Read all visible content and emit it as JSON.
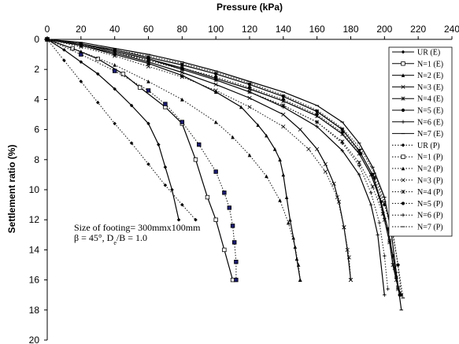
{
  "chart_data": {
    "type": "line",
    "title": "",
    "xlabel": "Pressure (kPa)",
    "ylabel": "Settlement ratio (%)",
    "xlim": [
      0,
      240
    ],
    "ylim": [
      0,
      20
    ],
    "x_axis_position": "top",
    "y_inverted": true,
    "x_ticks": [
      "0",
      "20",
      "40",
      "60",
      "80",
      "100",
      "120",
      "140",
      "160",
      "180",
      "200",
      "220",
      "240"
    ],
    "y_ticks": [
      "0",
      "2",
      "4",
      "6",
      "8",
      "10",
      "12",
      "14",
      "16",
      "18",
      "20"
    ],
    "grid": false,
    "legend_position": "right",
    "annotation": {
      "line1": "Size of footing= 300mmx100mm",
      "line2_beta": "β = 45°, D",
      "line2_sub": "e",
      "line2_rest": "/B = 1.0"
    },
    "series": [
      {
        "name": "UR (E)",
        "style": "solid",
        "marker": "diamond",
        "x": [
          0,
          10,
          20,
          30,
          40,
          50,
          60,
          66,
          70,
          74,
          78
        ],
        "y": [
          0,
          0.7,
          1.5,
          2.3,
          3.3,
          4.4,
          5.6,
          7.0,
          8.5,
          10.0,
          12.0
        ]
      },
      {
        "name": "N=1 (E)",
        "style": "solid",
        "marker": "square",
        "x": [
          0,
          15,
          30,
          45,
          55,
          70,
          80,
          88,
          95,
          100,
          105,
          110
        ],
        "y": [
          0,
          0.6,
          1.3,
          2.3,
          3.2,
          4.5,
          5.6,
          8.0,
          10.5,
          12.0,
          14.0,
          16.0
        ]
      },
      {
        "name": "N=2 (E)",
        "style": "solid",
        "marker": "triangle",
        "x": [
          0,
          20,
          40,
          60,
          80,
          100,
          115,
          125,
          130,
          135,
          138,
          140,
          142,
          144,
          146,
          148,
          150
        ],
        "y": [
          0,
          0.4,
          1.0,
          1.6,
          2.4,
          3.5,
          4.5,
          5.7,
          6.4,
          7.3,
          8.0,
          9.0,
          10.5,
          12.0,
          13.2,
          14.6,
          16.0
        ]
      },
      {
        "name": "N=3 (E)",
        "style": "solid",
        "marker": "x",
        "x": [
          0,
          20,
          40,
          60,
          80,
          100,
          120,
          140,
          150,
          160,
          165,
          170,
          173,
          176,
          178,
          180
        ],
        "y": [
          0,
          0.4,
          0.9,
          1.5,
          2.2,
          3.0,
          3.9,
          5.0,
          6.0,
          7.3,
          8.3,
          9.6,
          10.8,
          12.5,
          14.0,
          16.0
        ]
      },
      {
        "name": "N=4 (E)",
        "style": "solid",
        "marker": "asterisk",
        "x": [
          0,
          20,
          40,
          60,
          80,
          100,
          120,
          140,
          160,
          175,
          185,
          192,
          197,
          200,
          203,
          205,
          207,
          208,
          210
        ],
        "y": [
          0,
          0.3,
          0.8,
          1.3,
          1.9,
          2.6,
          3.3,
          4.1,
          5.1,
          6.3,
          7.6,
          9.0,
          10.5,
          12.0,
          13.5,
          15.0,
          16.0,
          16.5,
          17.0
        ]
      },
      {
        "name": "N=5 (E)",
        "style": "solid",
        "marker": "circle",
        "x": [
          0,
          20,
          40,
          60,
          80,
          100,
          120,
          140,
          160,
          175,
          185,
          193,
          198,
          202,
          205,
          207,
          209
        ],
        "y": [
          0,
          0.3,
          0.7,
          1.2,
          1.7,
          2.3,
          3.0,
          3.8,
          4.8,
          6.0,
          7.4,
          9.0,
          10.8,
          12.6,
          14.4,
          15.8,
          17.0
        ]
      },
      {
        "name": "N=6 (E)",
        "style": "solid",
        "marker": "plus",
        "x": [
          0,
          20,
          40,
          60,
          80,
          100,
          120,
          140,
          160,
          175,
          185,
          192,
          196,
          200
        ],
        "y": [
          0,
          0.3,
          0.8,
          1.3,
          2.0,
          2.7,
          3.5,
          4.5,
          5.8,
          7.4,
          9.0,
          11.0,
          13.0,
          17.0
        ]
      },
      {
        "name": "N=7 (E)",
        "style": "solid",
        "marker": "dash",
        "x": [
          0,
          20,
          40,
          60,
          80,
          100,
          120,
          140,
          160,
          175,
          185,
          193,
          200,
          204,
          207,
          210
        ],
        "y": [
          0,
          0.2,
          0.6,
          1.0,
          1.5,
          2.1,
          2.8,
          3.5,
          4.4,
          5.5,
          6.9,
          8.5,
          10.5,
          12.8,
          15.5,
          18.0
        ]
      },
      {
        "name": "UR (P)",
        "style": "dot",
        "marker": "diamond",
        "x": [
          0,
          10,
          20,
          30,
          40,
          50,
          60,
          70,
          80,
          88
        ],
        "y": [
          0,
          1.4,
          2.8,
          4.2,
          5.6,
          6.9,
          8.3,
          9.7,
          11.0,
          12.0
        ]
      },
      {
        "name": "N=1 (P)",
        "style": "dot",
        "marker": "square",
        "x": [
          0,
          20,
          40,
          60,
          70,
          80,
          90,
          100,
          105,
          108,
          110,
          111,
          112,
          112
        ],
        "y": [
          0,
          1.0,
          2.1,
          3.4,
          4.3,
          5.5,
          7.0,
          8.8,
          10.2,
          11.2,
          12.4,
          13.5,
          14.8,
          16.0
        ]
      },
      {
        "name": "N=2 (P)",
        "style": "dot",
        "marker": "triangle",
        "x": [
          0,
          20,
          40,
          60,
          80,
          100,
          110,
          120,
          130,
          138,
          143,
          147,
          149,
          150
        ],
        "y": [
          0,
          0.8,
          1.7,
          2.8,
          4.0,
          5.5,
          6.5,
          7.7,
          9.1,
          10.7,
          12.2,
          13.8,
          15.0,
          16.0
        ]
      },
      {
        "name": "N=3 (P)",
        "style": "dot",
        "marker": "x",
        "x": [
          0,
          20,
          40,
          60,
          80,
          100,
          120,
          140,
          155,
          165,
          172,
          176,
          179,
          180
        ],
        "y": [
          0,
          0.5,
          1.1,
          1.8,
          2.5,
          3.4,
          4.5,
          5.8,
          7.3,
          8.8,
          10.5,
          12.5,
          14.5,
          16.0
        ]
      },
      {
        "name": "N=4 (P)",
        "style": "dot",
        "marker": "asterisk",
        "x": [
          0,
          20,
          40,
          60,
          80,
          100,
          120,
          140,
          160,
          175,
          185,
          193,
          199,
          203,
          206,
          208
        ],
        "y": [
          0,
          0.4,
          0.9,
          1.4,
          2.0,
          2.7,
          3.5,
          4.4,
          5.5,
          6.8,
          8.2,
          9.8,
          11.6,
          13.4,
          15.2,
          16.6
        ]
      },
      {
        "name": "N=5 (P)",
        "style": "dot",
        "marker": "circle",
        "x": [
          0,
          20,
          40,
          60,
          80,
          100,
          120,
          140,
          160,
          175,
          186,
          194,
          200,
          205,
          208,
          210
        ],
        "y": [
          0,
          0.35,
          0.8,
          1.3,
          1.9,
          2.5,
          3.2,
          4.0,
          5.0,
          6.2,
          7.6,
          9.2,
          11.0,
          13.0,
          15.0,
          17.0
        ]
      },
      {
        "name": "N=6 (P)",
        "style": "dot",
        "marker": "plus",
        "x": [
          0,
          20,
          40,
          60,
          80,
          100,
          120,
          140,
          160,
          175,
          185,
          192,
          197,
          200,
          202
        ],
        "y": [
          0,
          0.35,
          0.8,
          1.4,
          2.0,
          2.7,
          3.5,
          4.4,
          5.5,
          6.9,
          8.4,
          10.2,
          12.2,
          14.4,
          16.6
        ]
      },
      {
        "name": "N=7 (P)",
        "style": "dot",
        "marker": "dash",
        "x": [
          0,
          20,
          40,
          60,
          80,
          100,
          120,
          140,
          160,
          175,
          186,
          194,
          200,
          205,
          208,
          211
        ],
        "y": [
          0,
          0.3,
          0.7,
          1.1,
          1.6,
          2.2,
          2.9,
          3.7,
          4.7,
          5.9,
          7.3,
          8.9,
          10.8,
          12.8,
          15.0,
          17.2
        ]
      }
    ]
  }
}
